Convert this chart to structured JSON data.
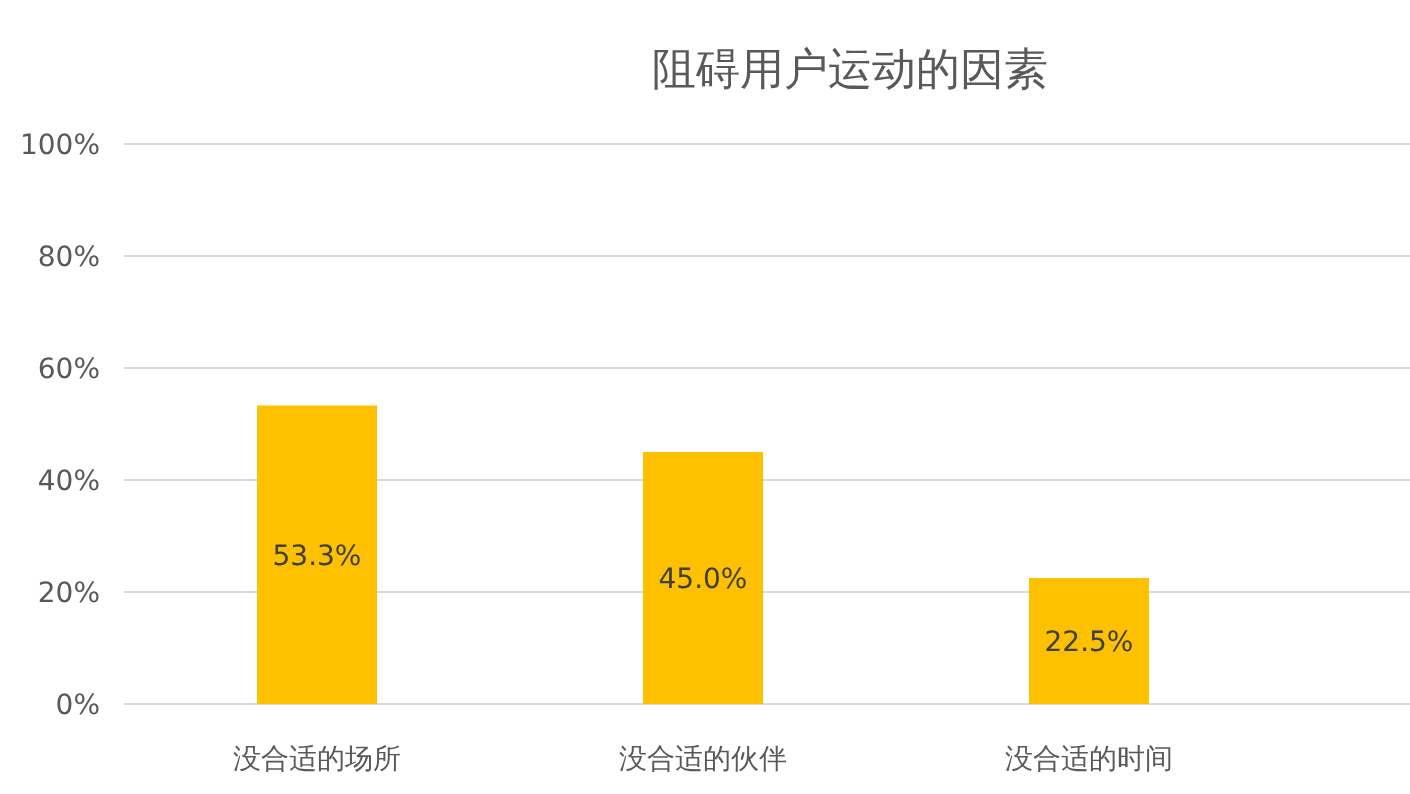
{
  "chart_data": {
    "type": "bar",
    "title": "阻碍用户运动的因素",
    "categories": [
      "没合适的场所",
      "没合适的伙伴",
      "没合适的时间"
    ],
    "values": [
      53.3,
      45.0,
      22.5
    ],
    "color": "#ffc000",
    "value_labels": [
      "53.3%",
      "45.0%",
      "22.5%"
    ],
    "ylim": [
      0,
      100
    ],
    "yticks": [
      {
        "value": 0,
        "label": "0%"
      },
      {
        "value": 20,
        "label": "20%"
      },
      {
        "value": 40,
        "label": "40%"
      },
      {
        "value": 60,
        "label": "60%"
      },
      {
        "value": 80,
        "label": "80%"
      },
      {
        "value": 100,
        "label": "100%"
      }
    ],
    "grid": "y"
  }
}
